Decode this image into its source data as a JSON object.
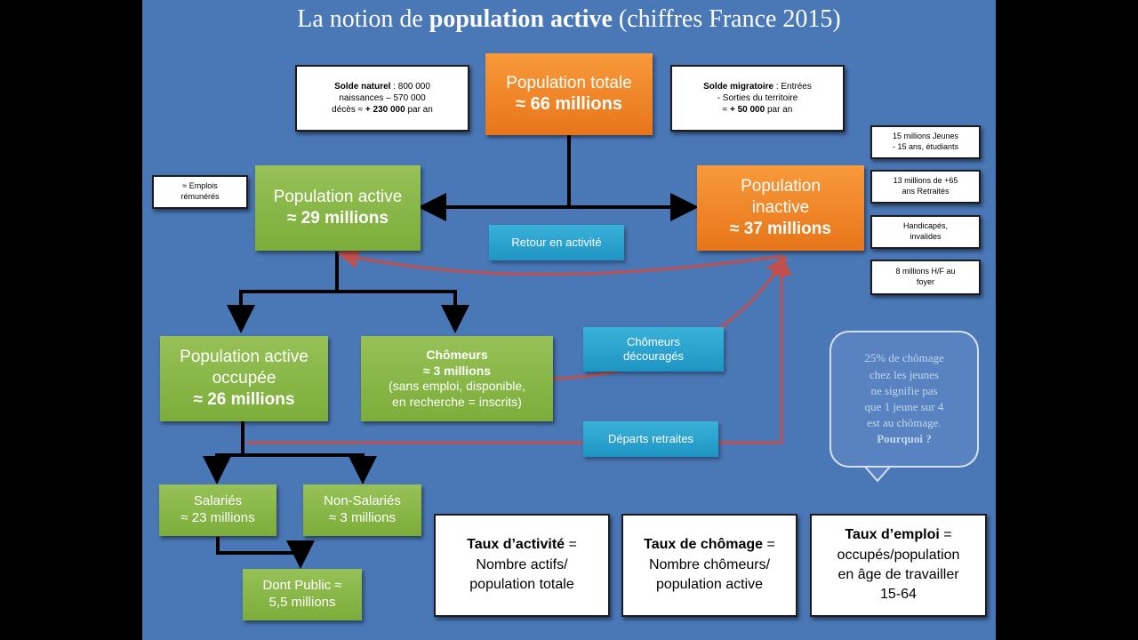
{
  "title": {
    "normal": "La notion de ",
    "bold": "population active",
    "suffix": " (chiffres France 2015)"
  },
  "population_totale": {
    "line1": "Population totale",
    "line2": "≈ 66 millions"
  },
  "solde_naturel": {
    "label_bold": "Solde naturel",
    "label_rest": " : 800 000",
    "line2": "naissances – 570 000",
    "line3_pre": "décès ≈ ",
    "line3_bold": "+ 230 000",
    "line3_post": " par an"
  },
  "solde_migratoire": {
    "label_bold": "Solde migratoire",
    "label_rest": " : Entrées",
    "line2": "- Sorties du territoire",
    "line3_pre": "≈ ",
    "line3_bold": "+ 50 000",
    "line3_post": " par an"
  },
  "emplois": {
    "line1": "≈ Emplois",
    "line2": "rémunérés"
  },
  "population_active": {
    "line1": "Population active",
    "line2": "≈ 29 millions"
  },
  "population_inactive": {
    "line1": "Population",
    "line2": "inactive",
    "line3": "≈ 37 millions"
  },
  "retour_activite": "Retour en activité",
  "inactifs": [
    {
      "line1": "15 millions Jeunes",
      "line2": "- 15 ans, étudiants"
    },
    {
      "line1": "13 millions de +65",
      "line2": "ans Retraités"
    },
    {
      "line1": "Handicapés,",
      "line2": "invalides"
    },
    {
      "line1": "8 millions H/F au",
      "line2": "foyer"
    }
  ],
  "occupee": {
    "line1": "Population active",
    "line2": "occupée",
    "line3": "≈ 26 millions"
  },
  "chomeurs": {
    "line1": "Chômeurs",
    "line2": "≈ 3 millions",
    "line3": "(sans emploi, disponible,",
    "line4": "en recherche = inscrits)"
  },
  "chomeurs_decourages": {
    "line1": "Chômeurs",
    "line2": "découragés"
  },
  "departs_retraites": "Départs retraites",
  "bubble": {
    "line1": "25% de chômage",
    "line2": "chez les jeunes",
    "line3": "ne signifie  pas",
    "line4": "que 1 jeune sur 4",
    "line5": "est au chômage.",
    "line6": "Pourquoi ?"
  },
  "salaries": {
    "line1": "Salariés",
    "line2": "≈ 23 millions"
  },
  "non_salaries": {
    "line1": "Non-Salariés",
    "line2": "≈ 3 millions"
  },
  "public": {
    "line1": "Dont Public ≈",
    "line2": "5,5 millions"
  },
  "taux_activite": {
    "bold": "Taux d’activité",
    "eq": " =",
    "line2": "Nombre actifs/",
    "line3": "population totale"
  },
  "taux_chomage": {
    "bold": "Taux de chômage",
    "eq": " =",
    "line2": "Nombre chômeurs/",
    "line3": "population active"
  },
  "taux_emploi": {
    "bold": "Taux d’emploi",
    "eq": " =",
    "line2": "occupés/population",
    "line3": "en âge de travailler",
    "line4": "15-64"
  },
  "colors": {
    "background": "#4a77b6",
    "orange": "#f08a2a",
    "green": "#8ab84a",
    "teal": "#2aa3d0",
    "red_arrow": "#c0504d"
  }
}
